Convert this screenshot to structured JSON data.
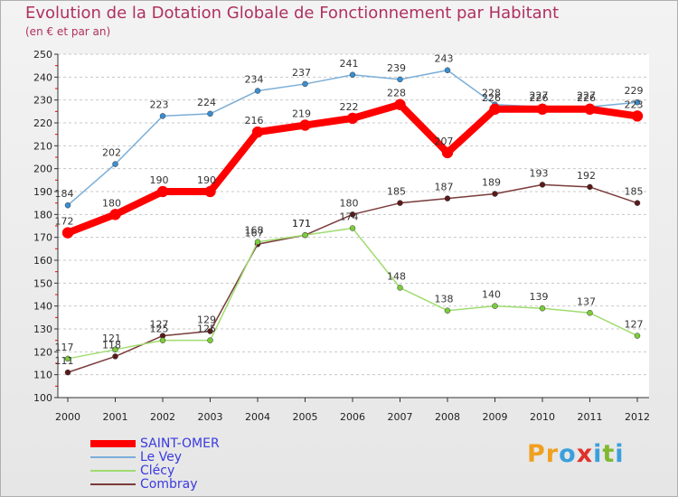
{
  "title": "Evolution de la Dotation Globale de Fonctionnement par Habitant",
  "subtitle": "(en € et par an)",
  "logo": {
    "text": "Proxiti",
    "letters": [
      "P",
      "r",
      "o",
      "x",
      "i",
      "t",
      "i"
    ],
    "colors": [
      "#f0a020",
      "#f0a020",
      "#3aa0dc",
      "#e0302a",
      "#3aa0dc",
      "#80b830",
      "#3aa0dc"
    ]
  },
  "chart_data": {
    "type": "line",
    "title": "Evolution de la Dotation Globale de Fonctionnement par Habitant",
    "subtitle": "(en € et par an)",
    "xlabel": "",
    "ylabel": "",
    "ylim": [
      100,
      250
    ],
    "ytick_step": 10,
    "grid": "horizontal dashed",
    "x": [
      "2000",
      "2001",
      "2002",
      "2003",
      "2004",
      "2005",
      "2006",
      "2007",
      "2008",
      "2009",
      "2010",
      "2011",
      "2012"
    ],
    "series": [
      {
        "name": "SAINT-OMER",
        "color": "#ff0000",
        "marker": "#ff0000",
        "width": 8,
        "values": [
          172,
          180,
          190,
          190,
          216,
          219,
          222,
          228,
          207,
          226,
          226,
          226,
          223
        ]
      },
      {
        "name": "Le Vey",
        "color": "#7aaed8",
        "marker": "#3b8ed0",
        "width": 1.5,
        "values": [
          184,
          202,
          223,
          224,
          234,
          237,
          241,
          239,
          243,
          228,
          227,
          227,
          229
        ]
      },
      {
        "name": "Clécy",
        "color": "#a0dc70",
        "marker": "#7ccc3c",
        "width": 1.5,
        "values": [
          117,
          121,
          125,
          125,
          168,
          171,
          174,
          148,
          138,
          140,
          139,
          137,
          127
        ]
      },
      {
        "name": "Combray",
        "color": "#7a3a3a",
        "marker": "#5a1a1a",
        "width": 1.5,
        "values": [
          111,
          118,
          127,
          129,
          167,
          171,
          180,
          185,
          187,
          189,
          193,
          192,
          185
        ]
      }
    ]
  }
}
